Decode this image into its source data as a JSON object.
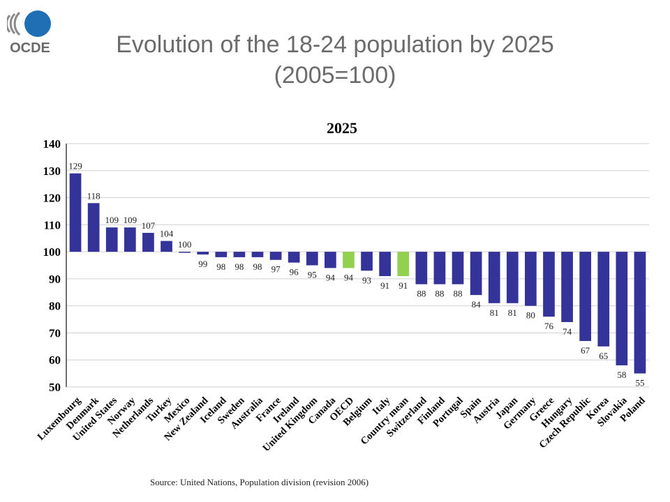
{
  "logo": {
    "text": "OCDE",
    "color": "#1f6fb5"
  },
  "slide_title": {
    "line1": "Evolution of the 18-24 population by 2025",
    "line2": "(2005=100)"
  },
  "source_note": "Source: United Nations, Population division (revision 2006)",
  "chart_data": {
    "type": "bar",
    "title": "2025",
    "xlabel": "",
    "ylabel": "",
    "ylim": [
      50,
      140
    ],
    "yticks": [
      50,
      60,
      70,
      80,
      90,
      100,
      110,
      120,
      130,
      140
    ],
    "baseline": 100,
    "grid": true,
    "legend": "none",
    "categories": [
      "Luxembourg",
      "Denmark",
      "United States",
      "Norway",
      "Netherlands",
      "Turkey",
      "Mexico",
      "New Zealand",
      "Iceland",
      "Sweden",
      "Australia",
      "France",
      "Ireland",
      "United Kingdom",
      "Canada",
      "OECD",
      "Belgium",
      "Italy",
      "Country mean",
      "Switzerland",
      "Finland",
      "Portugal",
      "Spain",
      "Austria",
      "Japan",
      "Germany",
      "Greece",
      "Hungary",
      "Czech Republic",
      "Korea",
      "Slovakia",
      "Poland"
    ],
    "values": [
      129,
      118,
      109,
      109,
      107,
      104,
      100,
      99,
      98,
      98,
      98,
      97,
      96,
      95,
      94,
      94,
      93,
      91,
      91,
      88,
      88,
      88,
      84,
      81,
      81,
      80,
      76,
      74,
      67,
      65,
      58,
      55
    ],
    "highlight": [
      "OECD",
      "Country mean"
    ],
    "colors": {
      "bar": "#333399",
      "highlight": "#92d050",
      "grid": "#d0d0d0",
      "axis": "#404040"
    }
  }
}
